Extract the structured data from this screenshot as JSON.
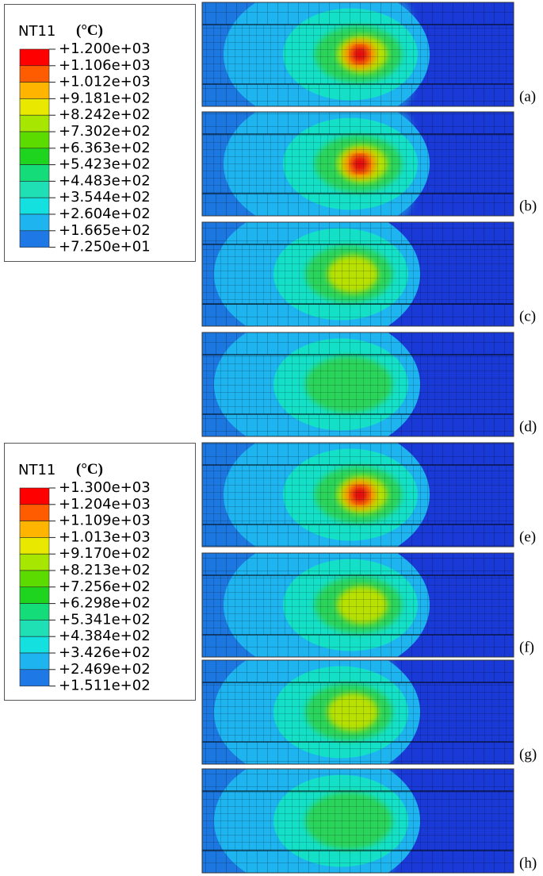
{
  "legends": [
    {
      "title": "NT11",
      "unit": "(°C)",
      "labels": [
        "+1.200e+03",
        "+1.106e+03",
        "+1.012e+03",
        "+9.181e+02",
        "+8.242e+02",
        "+7.302e+02",
        "+6.363e+02",
        "+5.423e+02",
        "+4.483e+02",
        "+3.544e+02",
        "+2.604e+02",
        "+1.665e+02",
        "+7.250e+01"
      ],
      "colors": [
        "#ff0000",
        "#ff5c00",
        "#ffb400",
        "#e8e800",
        "#a6e600",
        "#5cdb00",
        "#1ed41e",
        "#14dc78",
        "#1ee0b4",
        "#14e0e0",
        "#1eb4f0",
        "#1e78e6",
        "#1428e6"
      ]
    },
    {
      "title": "NT11",
      "unit": "(°C)",
      "labels": [
        "+1.300e+03",
        "+1.204e+03",
        "+1.109e+03",
        "+1.013e+03",
        "+9.170e+02",
        "+8.213e+02",
        "+7.256e+02",
        "+6.298e+02",
        "+5.341e+02",
        "+4.384e+02",
        "+3.426e+02",
        "+2.469e+02",
        "+1.511e+02"
      ],
      "colors": [
        "#ff0000",
        "#ff5c00",
        "#ffb400",
        "#e8e800",
        "#a6e600",
        "#5cdb00",
        "#1ed41e",
        "#14dc78",
        "#1ee0b4",
        "#14e0e0",
        "#1eb4f0",
        "#1e78e6",
        "#1428e6"
      ]
    }
  ],
  "panels": [
    "(a)",
    "(b)",
    "(c)",
    "(d)",
    "(e)",
    "(f)",
    "(g)",
    "(h)"
  ]
}
